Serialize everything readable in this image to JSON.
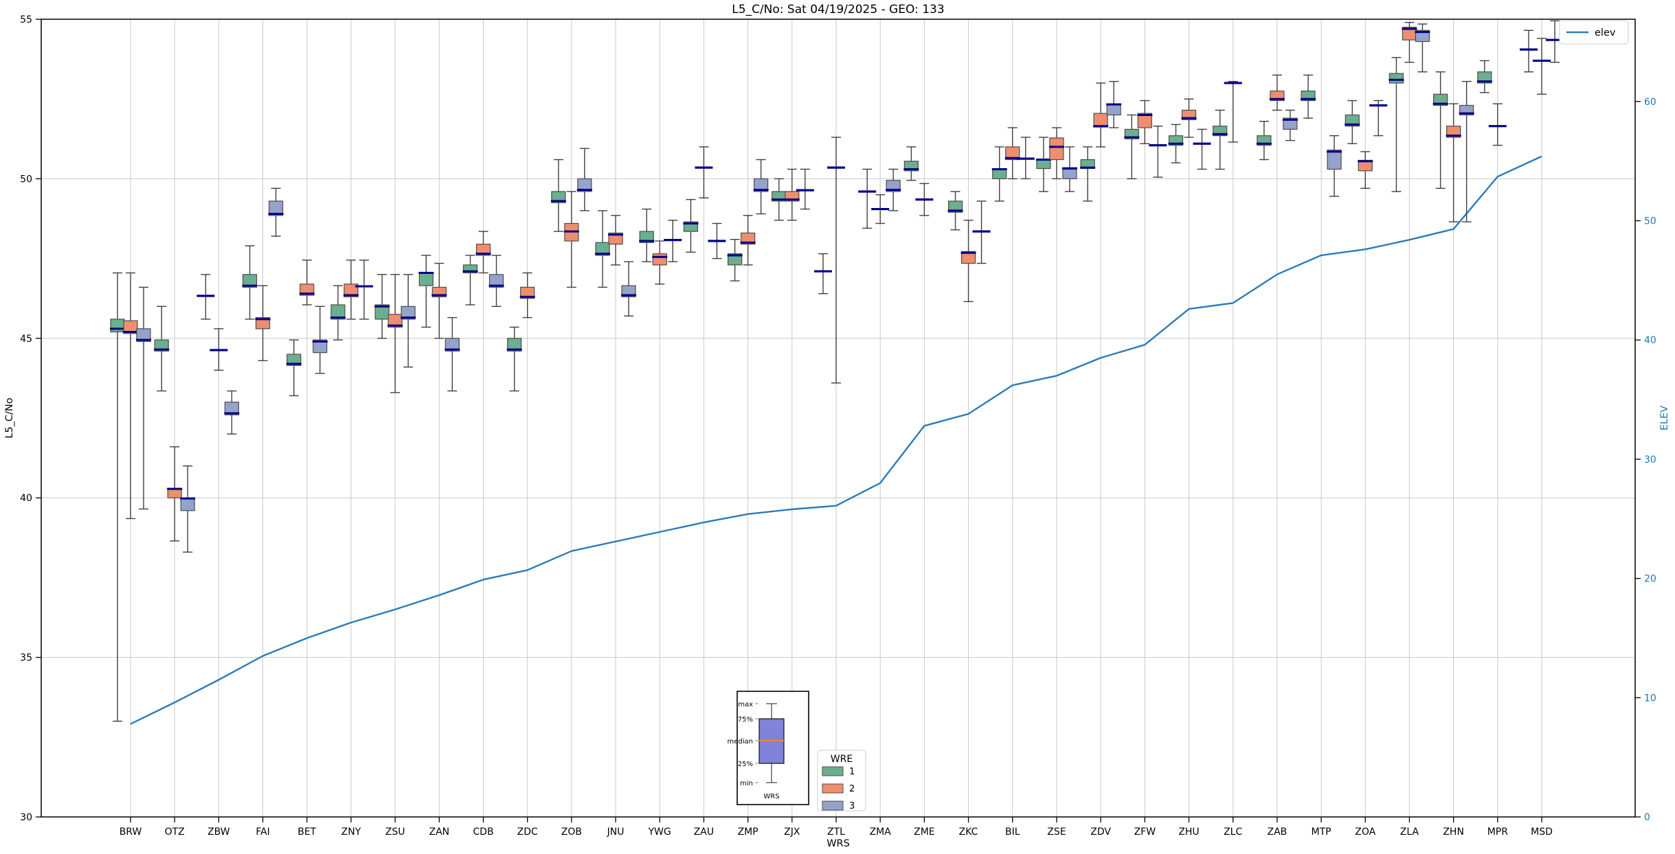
{
  "chart_data": {
    "type": "boxplot+line",
    "title": "L5_C/No: Sat 04/19/2025 - GEO: 133",
    "xlabel": "WRS",
    "ylabel_left": "L5_C/No",
    "ylabel_right": "ELEV",
    "ylim_left": [
      30,
      55
    ],
    "yticks_left": [
      30,
      35,
      40,
      45,
      50,
      55
    ],
    "ylim_right": [
      0,
      66.9
    ],
    "yticks_right": [
      0,
      10,
      20,
      30,
      40,
      50,
      60
    ],
    "grid": "both",
    "categories": [
      "BRW",
      "OTZ",
      "ZBW",
      "FAI",
      "BET",
      "ZNY",
      "ZSU",
      "ZAN",
      "CDB",
      "ZDC",
      "ZOB",
      "JNU",
      "YWG",
      "ZAU",
      "ZMP",
      "ZJX",
      "ZTL",
      "ZMA",
      "ZME",
      "ZKC",
      "BIL",
      "ZSE",
      "ZDV",
      "ZFW",
      "ZHU",
      "ZLC",
      "ZAB",
      "MTP",
      "ZOA",
      "ZLA",
      "ZHN",
      "MPR",
      "MSD"
    ],
    "box_format": "5 values = [whisker_min,q1,median,q3,whisker_max]; 3 values = flat median tick [median,whisker_min,whisker_max]; null = absent",
    "series": [
      {
        "name": "1",
        "color": "#6aaf8e",
        "boxes": [
          [
            33.0,
            45.2,
            45.3,
            45.6,
            47.05
          ],
          [
            43.35,
            44.6,
            44.65,
            44.95,
            46.0
          ],
          [
            46.33,
            45.6,
            47.0
          ],
          [
            45.6,
            46.6,
            46.65,
            47.0,
            47.9
          ],
          [
            43.2,
            44.15,
            44.2,
            44.5,
            44.95
          ],
          [
            44.95,
            45.6,
            45.65,
            46.05,
            46.65
          ],
          [
            45.0,
            45.6,
            46.0,
            46.05,
            47.0
          ],
          [
            45.35,
            46.65,
            47.05,
            47.05,
            47.6
          ],
          [
            46.05,
            47.05,
            47.1,
            47.3,
            47.6
          ],
          [
            43.35,
            44.6,
            44.65,
            45.0,
            45.35
          ],
          [
            48.35,
            49.25,
            49.3,
            49.6,
            50.6
          ],
          [
            46.6,
            47.6,
            47.65,
            48.0,
            49.0
          ],
          [
            47.4,
            48.0,
            48.05,
            48.35,
            49.05
          ],
          [
            47.7,
            48.35,
            48.6,
            48.65,
            49.35
          ],
          [
            46.8,
            47.3,
            47.6,
            47.65,
            48.1
          ],
          [
            48.7,
            49.3,
            49.35,
            49.6,
            50.0
          ],
          [
            47.1,
            46.4,
            47.65
          ],
          [
            49.6,
            48.45,
            50.3
          ],
          [
            49.95,
            50.25,
            50.3,
            50.55,
            51.0
          ],
          [
            48.4,
            48.95,
            49.0,
            49.3,
            49.6
          ],
          [
            49.3,
            50.0,
            50.3,
            50.32,
            51.0
          ],
          [
            49.6,
            50.32,
            50.6,
            50.62,
            51.3
          ],
          [
            49.3,
            50.32,
            50.35,
            50.6,
            51.0
          ],
          [
            50.0,
            51.25,
            51.3,
            51.55,
            52.0
          ],
          [
            50.5,
            51.05,
            51.1,
            51.35,
            51.7
          ],
          [
            50.3,
            51.35,
            51.4,
            51.65,
            52.15
          ],
          [
            50.6,
            51.05,
            51.1,
            51.35,
            51.8
          ],
          [
            51.9,
            52.45,
            52.5,
            52.75,
            53.25
          ],
          [
            51.1,
            51.65,
            51.7,
            52.0,
            52.45
          ],
          [
            49.6,
            53.0,
            53.1,
            53.3,
            53.8
          ],
          [
            49.7,
            52.3,
            52.35,
            52.65,
            53.35
          ],
          [
            52.7,
            53.0,
            53.05,
            53.35,
            53.7
          ],
          [
            54.05,
            53.35,
            54.65
          ]
        ]
      },
      {
        "name": "2",
        "color": "#ee8e6d",
        "boxes": [
          [
            39.35,
            45.15,
            45.2,
            45.55,
            47.05
          ],
          [
            38.65,
            40.0,
            40.28,
            40.3,
            41.6
          ],
          [
            44.63,
            44.0,
            45.3
          ],
          [
            44.3,
            45.3,
            45.6,
            45.65,
            46.65
          ],
          [
            46.05,
            46.35,
            46.4,
            46.7,
            47.45
          ],
          [
            45.6,
            46.3,
            46.35,
            46.7,
            47.45
          ],
          [
            43.3,
            45.35,
            45.4,
            45.75,
            47.0
          ],
          [
            45.0,
            46.3,
            46.35,
            46.6,
            47.35
          ],
          [
            47.05,
            47.6,
            47.65,
            47.95,
            48.35
          ],
          [
            45.65,
            46.25,
            46.3,
            46.6,
            47.05
          ],
          [
            46.6,
            48.05,
            48.35,
            48.6,
            49.6
          ],
          [
            47.3,
            47.95,
            48.25,
            48.3,
            48.85
          ],
          [
            46.7,
            47.3,
            47.55,
            47.65,
            48.05
          ],
          [
            50.35,
            49.4,
            51.0
          ],
          [
            47.3,
            47.95,
            48.0,
            48.3,
            48.85
          ],
          [
            48.7,
            49.3,
            49.35,
            49.6,
            50.3
          ],
          [
            50.35,
            43.6,
            51.3
          ],
          [
            49.05,
            48.6,
            49.5
          ],
          [
            49.35,
            48.85,
            49.85
          ],
          [
            46.15,
            47.35,
            47.68,
            47.72,
            48.7
          ],
          [
            50.0,
            50.6,
            50.65,
            51.0,
            51.6
          ],
          [
            50.0,
            50.6,
            51.0,
            51.28,
            51.6
          ],
          [
            51.0,
            51.62,
            51.65,
            52.05,
            53.0
          ],
          [
            51.1,
            51.6,
            52.0,
            52.05,
            52.45
          ],
          [
            51.3,
            51.85,
            51.9,
            52.15,
            52.5
          ],
          [
            53.0,
            51.15,
            53.05
          ],
          [
            52.15,
            52.45,
            52.5,
            52.75,
            53.25
          ],
          null,
          [
            49.7,
            50.25,
            50.55,
            50.58,
            50.85
          ],
          [
            53.65,
            54.35,
            54.7,
            54.75,
            54.9
          ],
          [
            48.65,
            51.3,
            51.35,
            51.65,
            52.35
          ],
          [
            51.65,
            51.05,
            52.35
          ],
          [
            53.7,
            52.65,
            54.4
          ]
        ]
      },
      {
        "name": "3",
        "color": "#95a3cb",
        "boxes": [
          [
            39.65,
            44.9,
            44.95,
            45.3,
            46.6
          ],
          [
            38.3,
            39.6,
            39.98,
            40.0,
            41.0
          ],
          [
            42.0,
            42.6,
            42.65,
            43.0,
            43.35
          ],
          [
            48.2,
            48.85,
            48.9,
            49.3,
            49.7
          ],
          [
            43.9,
            44.55,
            44.9,
            44.95,
            46.0
          ],
          [
            46.63,
            45.6,
            47.45
          ],
          [
            44.1,
            45.6,
            45.65,
            46.0,
            47.0
          ],
          [
            43.35,
            44.6,
            44.65,
            45.0,
            45.65
          ],
          [
            46.0,
            46.6,
            46.65,
            47.0,
            47.6
          ],
          null,
          [
            49.0,
            49.6,
            49.65,
            50.0,
            50.95
          ],
          [
            45.7,
            46.3,
            46.35,
            46.65,
            47.4
          ],
          [
            48.08,
            47.4,
            48.7
          ],
          [
            48.05,
            47.5,
            48.6
          ],
          [
            48.9,
            49.6,
            49.65,
            50.0,
            50.6
          ],
          [
            49.64,
            49.05,
            50.3
          ],
          null,
          [
            49.0,
            49.6,
            49.65,
            49.95,
            50.3
          ],
          null,
          [
            48.35,
            47.35,
            49.3
          ],
          [
            50.63,
            50.0,
            51.3
          ],
          [
            49.6,
            50.0,
            50.32,
            50.35,
            51.0
          ],
          [
            51.6,
            52.0,
            52.33,
            52.35,
            53.05
          ],
          [
            51.05,
            50.05,
            51.65
          ],
          [
            51.1,
            50.3,
            51.55
          ],
          null,
          [
            51.2,
            51.55,
            51.85,
            51.9,
            52.15
          ],
          [
            49.45,
            50.3,
            50.85,
            50.9,
            51.35
          ],
          [
            52.3,
            51.35,
            52.45
          ],
          [
            53.35,
            54.3,
            54.6,
            54.65,
            54.85
          ],
          [
            48.65,
            52.0,
            52.05,
            52.3,
            53.05
          ],
          null,
          [
            54.35,
            53.65,
            54.95
          ]
        ]
      }
    ],
    "elev_line": {
      "name": "elev",
      "color": "#2b7bba",
      "values": [
        7.8,
        9.6,
        11.5,
        13.5,
        15.0,
        16.3,
        17.4,
        18.6,
        19.9,
        20.7,
        22.3,
        23.1,
        23.9,
        24.7,
        25.4,
        25.8,
        26.1,
        28.0,
        32.8,
        33.8,
        36.2,
        37.0,
        38.5,
        39.6,
        42.6,
        43.1,
        45.5,
        47.1,
        47.6,
        48.4,
        49.3,
        53.7,
        55.4
      ]
    },
    "median_color": "#00008b",
    "legend_position": "upper right"
  },
  "legends": {
    "elev": {
      "label": "elev"
    },
    "wre": {
      "title": "WRE",
      "entries": [
        {
          "label": "1",
          "color": "#6aaf8e"
        },
        {
          "label": "2",
          "color": "#ee8e6d"
        },
        {
          "label": "3",
          "color": "#95a3cb"
        }
      ]
    }
  },
  "inset_key": {
    "labels": {
      "max": "max",
      "p75": "75%",
      "median": "median",
      "p25": "25%",
      "min": "min"
    },
    "xlabel": "WRS",
    "box_color": "#8182d9",
    "median_color": "#e8872e"
  },
  "colors": {
    "grid": "#c9c9c9",
    "box_edge": "#4d4d4d",
    "whisker": "#3f3f3f",
    "right_axis": "#1f77b4",
    "spine": "#000000"
  }
}
